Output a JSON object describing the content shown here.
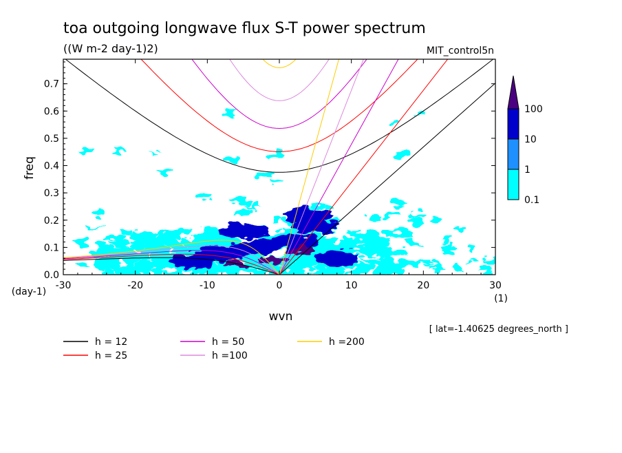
{
  "chart_data": {
    "type": "heatmap",
    "title": "toa outgoing longwave flux S-T power spectrum",
    "subtitle": "((W m-2 day-1)2)",
    "dataset": "MIT_control5n",
    "xlabel": "wvn",
    "ylabel": "freq",
    "x_unit": "(1)",
    "y_unit": "(day-1)",
    "xlim": [
      -30,
      30
    ],
    "ylim": [
      0,
      0.79
    ],
    "xticks": [
      "-30",
      "-20",
      "-10",
      "0",
      "10",
      "20",
      "30"
    ],
    "yticks": [
      "0.0",
      "0.1",
      "0.2",
      "0.3",
      "0.4",
      "0.5",
      "0.6",
      "0.7"
    ],
    "footnote": "[ lat=-1.40625 degrees_north ]",
    "color_levels": [
      "0.1",
      "1",
      "10",
      "100"
    ],
    "colorbar_colors": [
      "#00ffff",
      "#1e90ff",
      "#0000cd",
      "#4b0082"
    ],
    "dispersion_curves": [
      {
        "name": "h = 12",
        "h": 12,
        "color": "#000000"
      },
      {
        "name": "h = 25",
        "h": 25,
        "color": "#ff0000"
      },
      {
        "name": "h = 50",
        "h": 50,
        "color": "#cc00cc"
      },
      {
        "name": "h =100",
        "h": 100,
        "color": "#dd88dd"
      },
      {
        "name": "h =200",
        "h": 200,
        "color": "#ffcc00"
      }
    ],
    "power_blobs": [
      {
        "x": -8,
        "y": 0.08,
        "level": "10"
      },
      {
        "x": -3,
        "y": 0.1,
        "level": "10"
      },
      {
        "x": 2,
        "y": 0.12,
        "level": "10"
      },
      {
        "x": 5,
        "y": 0.18,
        "level": "10"
      },
      {
        "x": 4,
        "y": 0.22,
        "level": "10"
      },
      {
        "x": -12,
        "y": 0.05,
        "level": "10"
      },
      {
        "x": -5,
        "y": 0.16,
        "level": "10"
      },
      {
        "x": 8,
        "y": 0.06,
        "level": "10"
      },
      {
        "x": -1,
        "y": 0.05,
        "level": "100"
      },
      {
        "x": -6,
        "y": 0.04,
        "level": "100"
      },
      {
        "x": 3,
        "y": 0.09,
        "level": "100"
      }
    ]
  }
}
